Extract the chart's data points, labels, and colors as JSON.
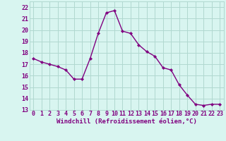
{
  "x": [
    0,
    1,
    2,
    3,
    4,
    5,
    6,
    7,
    8,
    9,
    10,
    11,
    12,
    13,
    14,
    15,
    16,
    17,
    18,
    19,
    20,
    21,
    22,
    23
  ],
  "y": [
    17.5,
    17.2,
    17.0,
    16.8,
    16.5,
    15.7,
    15.7,
    17.5,
    19.7,
    21.5,
    21.7,
    19.9,
    19.7,
    18.7,
    18.1,
    17.7,
    16.7,
    16.5,
    15.2,
    14.3,
    13.5,
    13.4,
    13.5,
    13.5
  ],
  "line_color": "#800080",
  "marker": "D",
  "marker_size": 2.2,
  "bg_color": "#d8f5f0",
  "grid_color": "#b0d8d0",
  "xlabel": "Windchill (Refroidissement éolien,°C)",
  "yticks": [
    13,
    14,
    15,
    16,
    17,
    18,
    19,
    20,
    21,
    22
  ],
  "xlim": [
    -0.5,
    23.5
  ],
  "ylim": [
    13,
    22.5
  ],
  "tick_color": "#800080",
  "label_color": "#800080",
  "label_fontsize": 6.5,
  "tick_fontsize": 6.0
}
